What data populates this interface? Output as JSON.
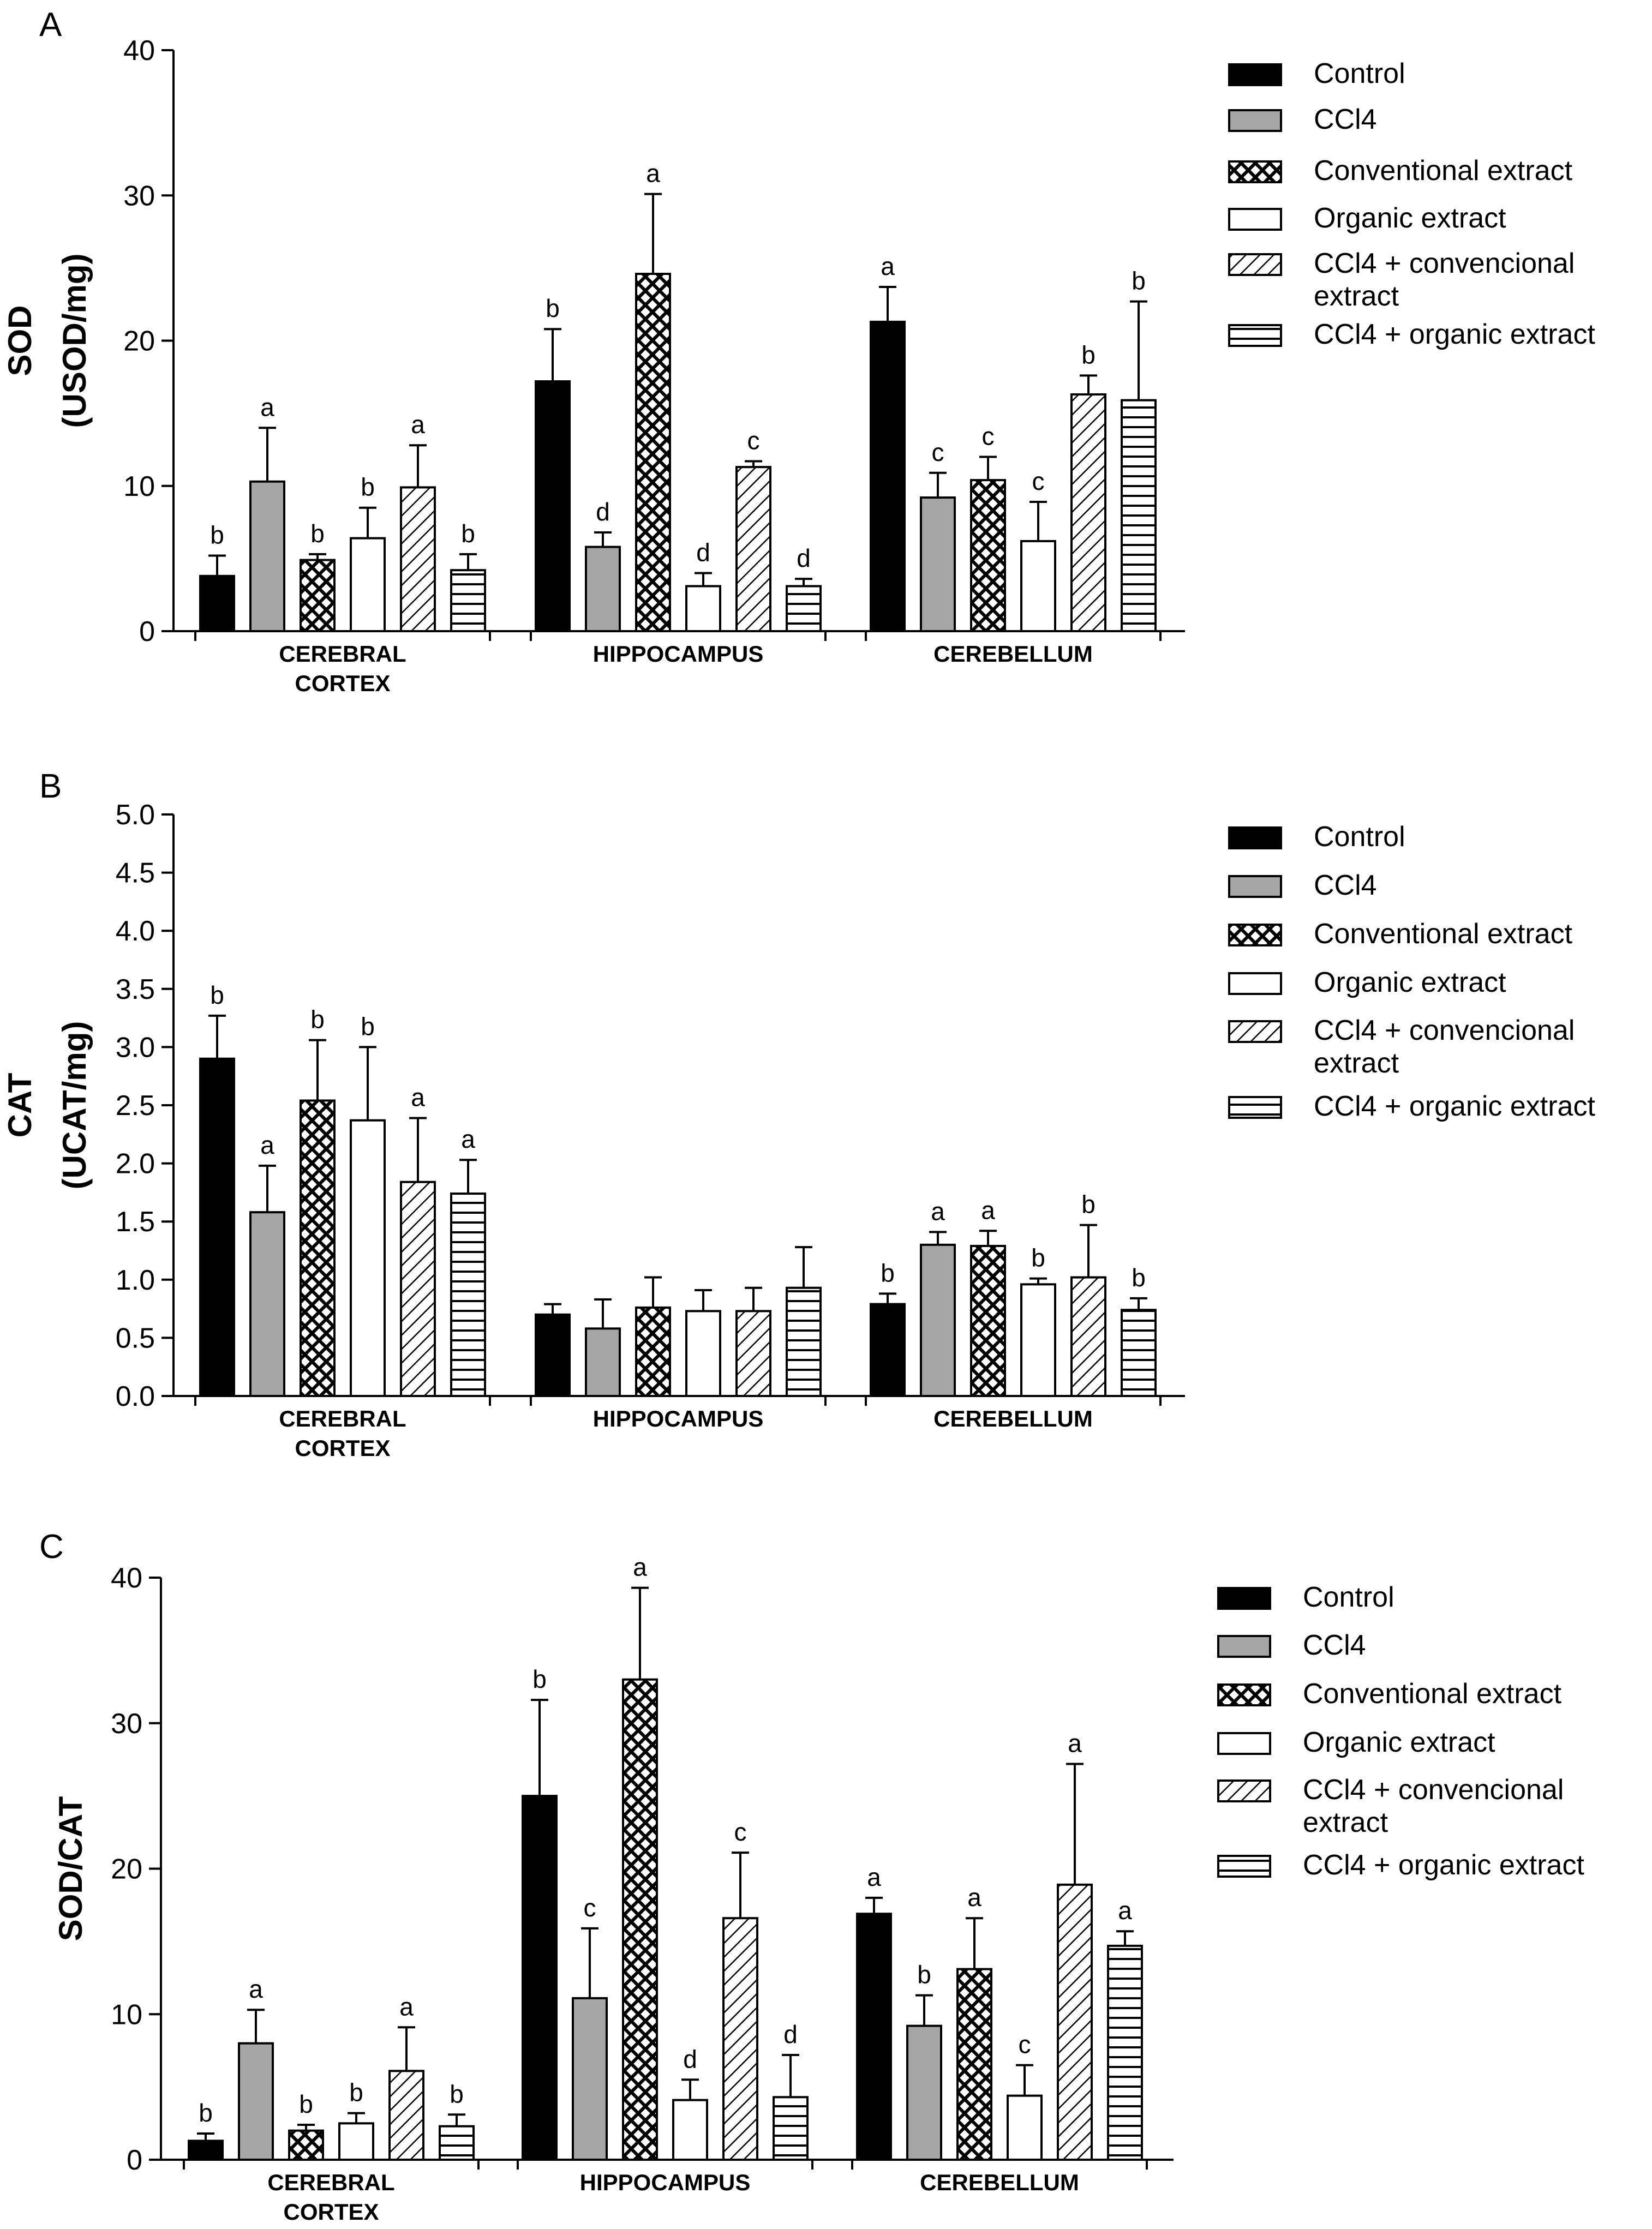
{
  "legend_labels": [
    "Control",
    "CCl4",
    "Conventional extract",
    "Organic extract",
    "CCl4 + convencional extract",
    "CCl4 + organic extract"
  ],
  "colors": {
    "ink": "#000000",
    "grey_fill": "#a6a6a6",
    "white_fill": "#ffffff"
  },
  "chart_data": [
    {
      "type": "bar",
      "panel": "A",
      "title": "",
      "xlabel": "",
      "ylabel": "SOD (USOD/mg)",
      "ylabel_lines": [
        "SOD",
        "(USOD/mg)"
      ],
      "ylim": [
        0,
        40
      ],
      "yticks": [
        0,
        10,
        20,
        30,
        40
      ],
      "tick_decimals": 0,
      "categories": [
        "CEREBRAL CORTEX",
        "HIPPOCAMPUS",
        "CEREBELLUM"
      ],
      "category_lines": [
        [
          "CEREBRAL",
          "CORTEX"
        ],
        [
          "HIPPOCAMPUS"
        ],
        [
          "CEREBELLUM"
        ]
      ],
      "legend": [
        "Control",
        "CCl4",
        "Conventional extract",
        "Organic extract",
        "CCl4 + convencional extract",
        "CCl4 + organic extract"
      ],
      "series": [
        {
          "name": "Control",
          "pattern": "solid-black",
          "values": [
            3.8,
            17.2,
            21.3
          ],
          "errors": [
            1.4,
            3.6,
            2.4
          ],
          "letters": [
            "b",
            "b",
            "a"
          ]
        },
        {
          "name": "CCl4",
          "pattern": "solid-grey",
          "values": [
            10.3,
            5.8,
            9.2
          ],
          "errors": [
            3.7,
            1.0,
            1.7
          ],
          "letters": [
            "a",
            "d",
            "c"
          ]
        },
        {
          "name": "Conventional extract",
          "pattern": "crosshatch",
          "values": [
            4.9,
            24.6,
            10.4
          ],
          "errors": [
            0.4,
            5.5,
            1.6
          ],
          "letters": [
            "b",
            "a",
            "c"
          ]
        },
        {
          "name": "Organic extract",
          "pattern": "white",
          "values": [
            6.4,
            3.1,
            6.2
          ],
          "errors": [
            2.1,
            0.9,
            2.7
          ],
          "letters": [
            "b",
            "d",
            "c"
          ]
        },
        {
          "name": "CCl4 + convencional extract",
          "pattern": "diagonal",
          "values": [
            9.9,
            11.3,
            16.3
          ],
          "errors": [
            2.9,
            0.4,
            1.3
          ],
          "letters": [
            "a",
            "c",
            "b"
          ]
        },
        {
          "name": "CCl4 + organic extract",
          "pattern": "horizontal",
          "values": [
            4.2,
            3.1,
            15.9
          ],
          "errors": [
            1.1,
            0.5,
            6.8
          ],
          "letters": [
            "b",
            "d",
            "b"
          ]
        }
      ]
    },
    {
      "type": "bar",
      "panel": "B",
      "title": "",
      "xlabel": "",
      "ylabel": "CAT (UCAT/mg)",
      "ylabel_lines": [
        "CAT",
        "(UCAT/mg)"
      ],
      "ylim": [
        0,
        5
      ],
      "yticks": [
        0,
        0.5,
        1,
        1.5,
        2,
        2.5,
        3,
        3.5,
        4,
        4.5,
        5
      ],
      "tick_decimals": 1,
      "categories": [
        "CEREBRAL CORTEX",
        "HIPPOCAMPUS",
        "CEREBELLUM"
      ],
      "category_lines": [
        [
          "CEREBRAL",
          "CORTEX"
        ],
        [
          "HIPPOCAMPUS"
        ],
        [
          "CEREBELLUM"
        ]
      ],
      "legend": [
        "Control",
        "CCl4",
        "Conventional extract",
        "Organic extract",
        "CCl4 + convencional extract",
        "CCl4 + organic extract"
      ],
      "series": [
        {
          "name": "Control",
          "pattern": "solid-black",
          "values": [
            2.9,
            0.7,
            0.79
          ],
          "errors": [
            0.37,
            0.09,
            0.09
          ],
          "letters": [
            "b",
            "",
            "b"
          ]
        },
        {
          "name": "CCl4",
          "pattern": "solid-grey",
          "values": [
            1.58,
            0.58,
            1.3
          ],
          "errors": [
            0.4,
            0.25,
            0.11
          ],
          "letters": [
            "a",
            "",
            "a"
          ]
        },
        {
          "name": "Conventional extract",
          "pattern": "crosshatch",
          "values": [
            2.54,
            0.76,
            1.29
          ],
          "errors": [
            0.52,
            0.26,
            0.13
          ],
          "letters": [
            "b",
            "",
            "a"
          ]
        },
        {
          "name": "Organic extract",
          "pattern": "white",
          "values": [
            2.37,
            0.73,
            0.96
          ],
          "errors": [
            0.63,
            0.18,
            0.05
          ],
          "letters": [
            "b",
            "",
            "b"
          ]
        },
        {
          "name": "CCl4 + convencional extract",
          "pattern": "diagonal",
          "values": [
            1.84,
            0.73,
            1.02
          ],
          "errors": [
            0.55,
            0.2,
            0.45
          ],
          "letters": [
            "a",
            "",
            "b"
          ]
        },
        {
          "name": "CCl4 + organic extract",
          "pattern": "horizontal",
          "values": [
            1.74,
            0.93,
            0.74
          ],
          "errors": [
            0.29,
            0.35,
            0.1
          ],
          "letters": [
            "a",
            "",
            "b"
          ]
        }
      ]
    },
    {
      "type": "bar",
      "panel": "C",
      "title": "",
      "xlabel": "",
      "ylabel": "SOD/CAT",
      "ylabel_lines": [
        "SOD/CAT"
      ],
      "ylim": [
        0,
        40
      ],
      "yticks": [
        0,
        10,
        20,
        30,
        40
      ],
      "tick_decimals": 0,
      "categories": [
        "CEREBRAL CORTEX",
        "HIPPOCAMPUS",
        "CEREBELLUM"
      ],
      "category_lines": [
        [
          "CEREBRAL",
          "CORTEX"
        ],
        [
          "HIPPOCAMPUS"
        ],
        [
          "CEREBELLUM"
        ]
      ],
      "legend": [
        "Control",
        "CCl4",
        "Conventional extract",
        "Organic extract",
        "CCl4 + convencional extract",
        "CCl4 + organic extract"
      ],
      "series": [
        {
          "name": "Control",
          "pattern": "solid-black",
          "values": [
            1.3,
            25.0,
            16.9
          ],
          "errors": [
            0.5,
            6.6,
            1.1
          ],
          "letters": [
            "b",
            "b",
            "a"
          ]
        },
        {
          "name": "CCl4",
          "pattern": "solid-grey",
          "values": [
            8.0,
            11.1,
            9.2
          ],
          "errors": [
            2.3,
            4.8,
            2.1
          ],
          "letters": [
            "a",
            "c",
            "b"
          ]
        },
        {
          "name": "Conventional extract",
          "pattern": "crosshatch",
          "values": [
            2.0,
            33.0,
            13.1
          ],
          "errors": [
            0.4,
            6.3,
            3.5
          ],
          "letters": [
            "b",
            "a",
            "a"
          ]
        },
        {
          "name": "Organic extract",
          "pattern": "white",
          "values": [
            2.5,
            4.1,
            4.4
          ],
          "errors": [
            0.7,
            1.4,
            2.1
          ],
          "letters": [
            "b",
            "d",
            "c"
          ]
        },
        {
          "name": "CCl4 + convencional extract",
          "pattern": "diagonal",
          "values": [
            6.1,
            16.6,
            18.9
          ],
          "errors": [
            3.0,
            4.5,
            8.3
          ],
          "letters": [
            "a",
            "c",
            "a"
          ]
        },
        {
          "name": "CCl4 + organic extract",
          "pattern": "horizontal",
          "values": [
            2.3,
            4.3,
            14.7
          ],
          "errors": [
            0.8,
            2.9,
            1.0
          ],
          "letters": [
            "b",
            "d",
            "a"
          ]
        }
      ]
    }
  ]
}
